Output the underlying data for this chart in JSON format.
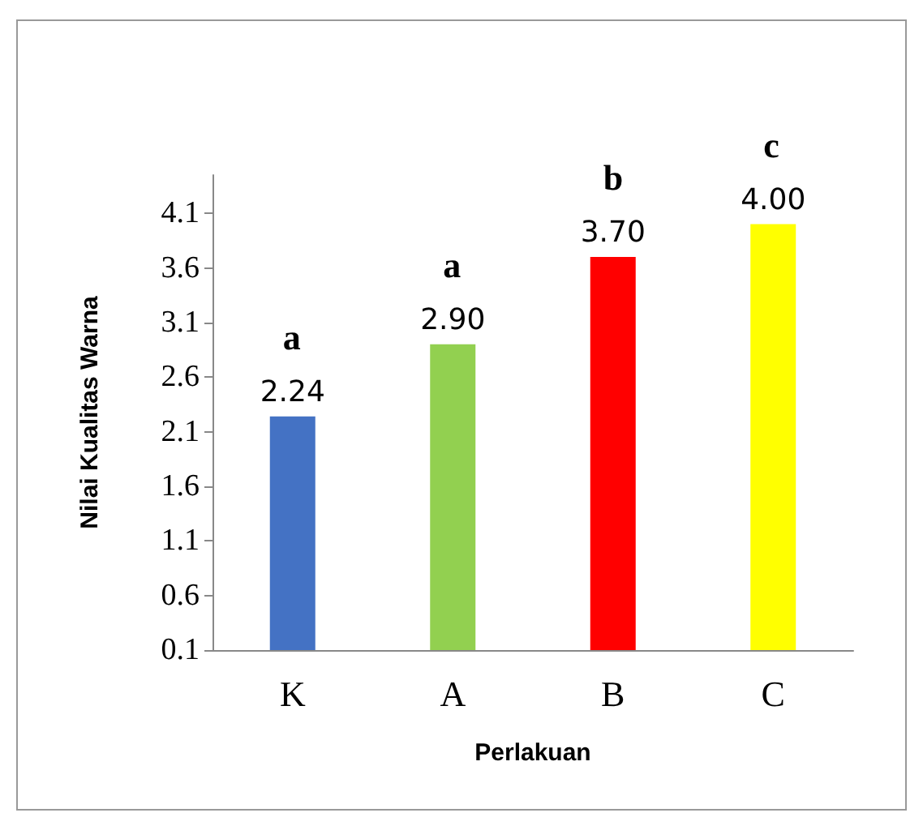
{
  "chart_data": {
    "type": "bar",
    "xlabel": "Perlakuan",
    "ylabel": "Nilai Kualitas Warna",
    "categories": [
      "K",
      "A",
      "B",
      "C"
    ],
    "values": [
      2.24,
      2.9,
      3.7,
      4.0
    ],
    "colors": [
      "#4472c4",
      "#92d050",
      "#ff0000",
      "#ffff00"
    ],
    "value_labels": [
      "2.24",
      "2.90",
      "3.70",
      "4.00"
    ],
    "annotations": [
      "a",
      "a",
      "b",
      "c"
    ],
    "ylim": [
      0.1,
      4.45
    ],
    "yticks": [
      0.1,
      0.6,
      1.1,
      1.6,
      2.1,
      2.6,
      3.1,
      3.6,
      4.1
    ],
    "grid": false
  }
}
